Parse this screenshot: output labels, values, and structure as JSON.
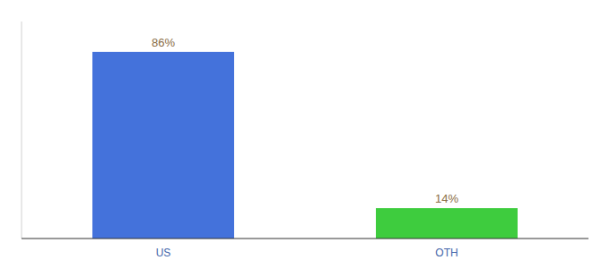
{
  "chart_data": {
    "type": "bar",
    "categories": [
      "US",
      "OTH"
    ],
    "values": [
      86,
      14
    ],
    "value_labels": [
      "86%",
      "14%"
    ],
    "colors": [
      "#4472db",
      "#3ecc3e"
    ],
    "data_labels": true,
    "ylim": [
      0,
      100
    ],
    "tick_labels": "x"
  }
}
